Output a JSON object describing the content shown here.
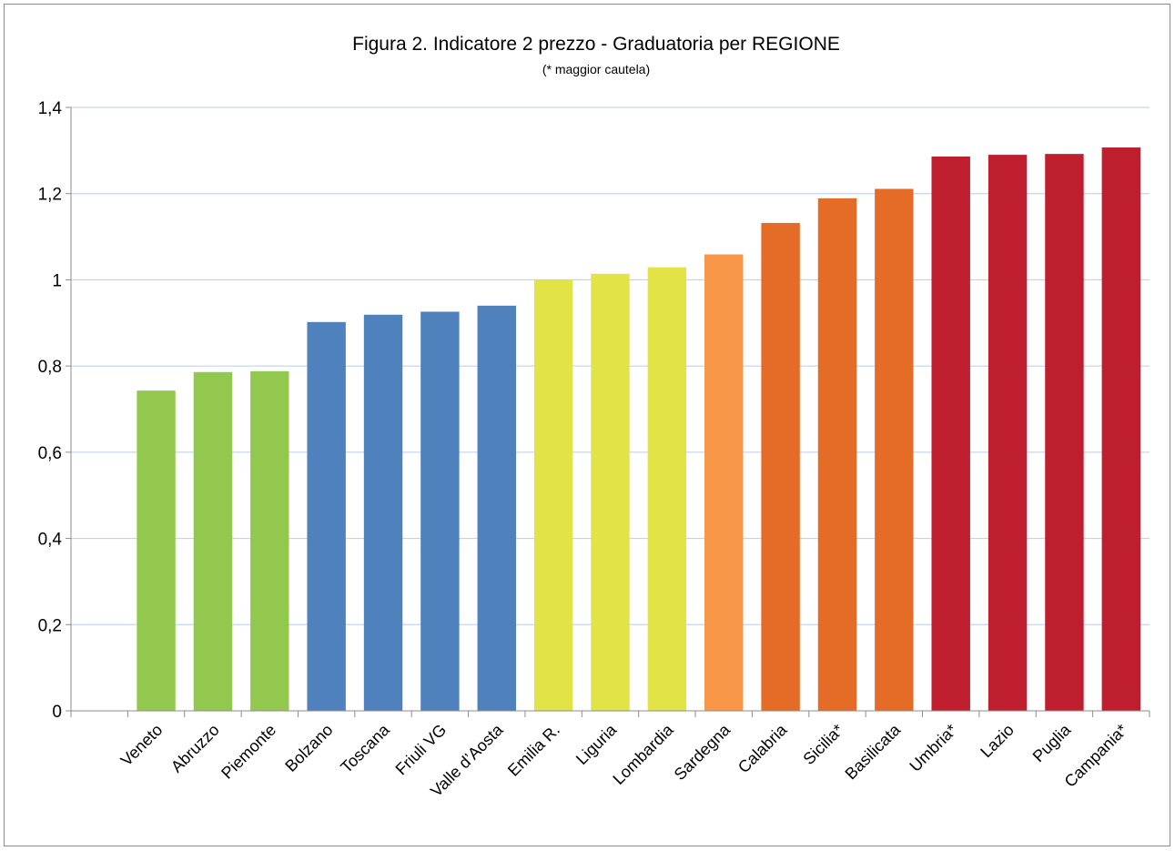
{
  "chart_data": {
    "type": "bar",
    "title": "Figura 2. Indicatore 2 prezzo - Graduatoria per REGIONE",
    "subtitle": "(* maggior cautela)",
    "xlabel": "",
    "ylabel": "",
    "ylim": [
      0,
      1.4
    ],
    "yticks": [
      {
        "value": 0,
        "label": "0"
      },
      {
        "value": 0.2,
        "label": "0,2"
      },
      {
        "value": 0.4,
        "label": "0,4"
      },
      {
        "value": 0.6,
        "label": "0,6"
      },
      {
        "value": 0.8,
        "label": "0,8"
      },
      {
        "value": 1.0,
        "label": "1"
      },
      {
        "value": 1.2,
        "label": "1,2"
      },
      {
        "value": 1.4,
        "label": "1,4"
      }
    ],
    "grid": true,
    "legend": "none",
    "categories": [
      "Veneto",
      "Abruzzo",
      "Piemonte",
      "Bolzano",
      "Toscana",
      "Friuli VG",
      "Valle d’Aosta",
      "Emilia R.",
      "Liguria",
      "Lombardia",
      "Sardegna",
      "Calabria",
      "Sicilia*",
      "Basilicata",
      "Umbria*",
      "Lazio",
      "Puglia",
      "Campania*"
    ],
    "values": [
      0.743,
      0.786,
      0.788,
      0.902,
      0.919,
      0.926,
      0.94,
      1.0,
      1.014,
      1.029,
      1.059,
      1.132,
      1.189,
      1.211,
      1.286,
      1.29,
      1.292,
      1.307
    ],
    "bar_colors": [
      "#92c84e",
      "#92c84e",
      "#92c84e",
      "#4f81bd",
      "#4f81bd",
      "#4f81bd",
      "#4f81bd",
      "#e2e346",
      "#e2e346",
      "#e2e346",
      "#f79646",
      "#e46c26",
      "#e46c26",
      "#e46c26",
      "#be1e2d",
      "#be1e2d",
      "#be1e2d",
      "#be1e2d"
    ],
    "gridline_color": "#b9cde5",
    "axis_color": "#8c8c8c"
  }
}
